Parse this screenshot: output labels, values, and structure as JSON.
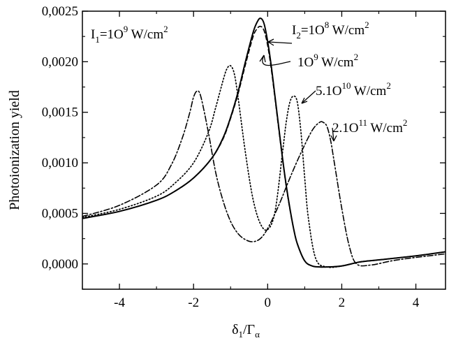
{
  "chart_data": {
    "type": "line",
    "xlabel": "δ1/Γα",
    "ylabel": "Photoionization yield",
    "xlim": [
      -5,
      4.8
    ],
    "ylim": [
      -0.00025,
      0.0025
    ],
    "xticks": [
      -4,
      -2,
      0,
      2,
      4
    ],
    "xtick_labels": [
      "-4",
      "-2",
      "0",
      "2",
      "4"
    ],
    "yticks": [
      0,
      0.0005,
      0.001,
      0.0015,
      0.002,
      0.0025
    ],
    "ytick_labels": [
      "0,0000",
      "0,0005",
      "0,0010",
      "0,0015",
      "0,0020",
      "0,0025"
    ],
    "annotations": [
      {
        "base": "I",
        "sub": "1",
        "mid": "=1O",
        "sup": "9",
        "tail": " W/cm",
        "sup2": "2"
      },
      {
        "base": "I",
        "sub": "2",
        "mid": "=1O",
        "sup": "8",
        "tail": " W/cm",
        "sup2": "2"
      },
      {
        "base": "",
        "sub": "",
        "mid": "1O",
        "sup": "9",
        "tail": " W/cm",
        "sup2": "2"
      },
      {
        "base": "",
        "sub": "",
        "mid": "5.1O",
        "sup": "10",
        "tail": " W/cm",
        "sup2": "2"
      },
      {
        "base": "",
        "sub": "",
        "mid": "2.1O",
        "sup": "11",
        "tail": " W/cm",
        "sup2": "2"
      }
    ],
    "series": [
      {
        "style": "solid",
        "x": [
          -5,
          -4,
          -3,
          -2.5,
          -2,
          -1.5,
          -1.2,
          -1,
          -0.8,
          -0.6,
          -0.4,
          -0.3,
          -0.2,
          -0.1,
          0,
          0.1,
          0.2,
          0.3,
          0.4,
          0.5,
          0.6,
          0.7,
          0.8,
          1,
          1.2,
          1.4,
          1.6,
          2,
          2.5,
          3,
          4,
          4.8
        ],
        "y": [
          0.00045,
          0.00052,
          0.00063,
          0.00072,
          0.00085,
          0.00105,
          0.00125,
          0.00145,
          0.0017,
          0.002,
          0.00228,
          0.00238,
          0.00243,
          0.00238,
          0.0022,
          0.00195,
          0.00165,
          0.00135,
          0.00105,
          0.00078,
          0.00055,
          0.00035,
          0.0002,
          3e-05,
          -2e-05,
          -3e-05,
          -3e-05,
          -2e-05,
          2e-05,
          4e-05,
          8e-05,
          0.00012
        ]
      },
      {
        "style": "dashed",
        "x": [
          -5,
          -4,
          -3,
          -2.5,
          -2,
          -1.5,
          -1.2,
          -1,
          -0.8,
          -0.6,
          -0.4,
          -0.3,
          -0.2,
          -0.1,
          0,
          0.1,
          0.2,
          0.3,
          0.4,
          0.5,
          0.6,
          0.7,
          0.8,
          1,
          1.2,
          1.4,
          1.6,
          2,
          2.5,
          3,
          4,
          4.8
        ],
        "y": [
          0.00045,
          0.00052,
          0.00063,
          0.00072,
          0.00085,
          0.00105,
          0.00124,
          0.00144,
          0.00168,
          0.00197,
          0.00224,
          0.00232,
          0.00235,
          0.00231,
          0.00216,
          0.00192,
          0.00163,
          0.00133,
          0.00104,
          0.00077,
          0.00054,
          0.00035,
          0.0002,
          3e-05,
          -2e-05,
          -3e-05,
          -3e-05,
          -2e-05,
          2e-05,
          4e-05,
          8e-05,
          0.00012
        ]
      },
      {
        "style": "dotted",
        "x": [
          -5,
          -4,
          -3,
          -2.5,
          -2,
          -1.6,
          -1.4,
          -1.2,
          -1.1,
          -1,
          -0.9,
          -0.8,
          -0.6,
          -0.4,
          -0.2,
          0,
          0.2,
          0.4,
          0.5,
          0.6,
          0.7,
          0.8,
          0.9,
          1,
          1.1,
          1.3,
          1.6,
          2,
          2.5,
          3,
          4,
          4.8
        ],
        "y": [
          0.00046,
          0.00054,
          0.00067,
          0.0008,
          0.001,
          0.0013,
          0.00155,
          0.00182,
          0.00193,
          0.00196,
          0.00188,
          0.00165,
          0.0011,
          0.00065,
          0.0004,
          0.00034,
          0.00052,
          0.0011,
          0.0014,
          0.0016,
          0.00166,
          0.0016,
          0.0013,
          0.00085,
          0.00045,
          5e-05,
          -3e-05,
          -2e-05,
          2e-05,
          4e-05,
          8e-05,
          0.00012
        ]
      },
      {
        "style": "dashdot",
        "x": [
          -5,
          -4,
          -3,
          -2.6,
          -2.3,
          -2.1,
          -2,
          -1.9,
          -1.8,
          -1.6,
          -1.4,
          -1.2,
          -1,
          -0.8,
          -0.6,
          -0.4,
          -0.2,
          0,
          0.3,
          0.6,
          0.9,
          1.2,
          1.4,
          1.5,
          1.6,
          1.7,
          1.8,
          2,
          2.2,
          2.4,
          2.8,
          3.5,
          4.8
        ],
        "y": [
          0.00047,
          0.00058,
          0.00078,
          0.00098,
          0.00125,
          0.0015,
          0.00165,
          0.00171,
          0.00165,
          0.0013,
          0.0009,
          0.00062,
          0.00042,
          0.0003,
          0.00024,
          0.00022,
          0.00025,
          0.00035,
          0.00058,
          0.00085,
          0.0011,
          0.00132,
          0.0014,
          0.0014,
          0.00136,
          0.00122,
          0.001,
          0.00055,
          0.00018,
          0.0,
          -1e-05,
          4e-05,
          0.0001
        ]
      }
    ]
  }
}
